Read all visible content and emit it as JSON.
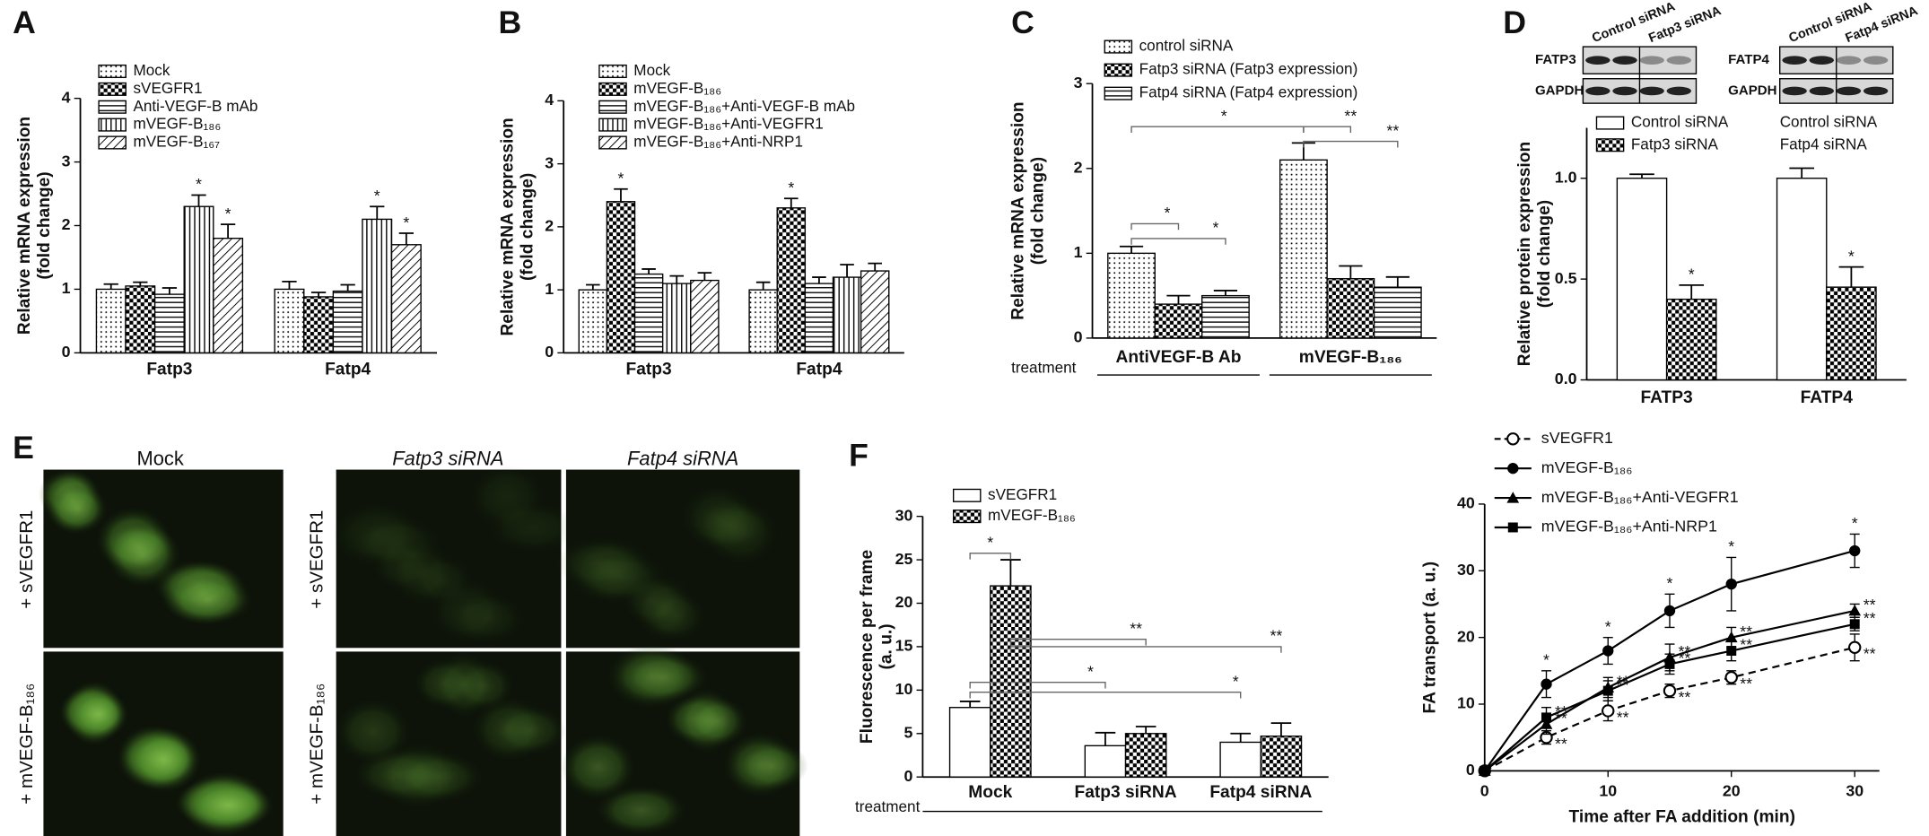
{
  "chart_data": [
    {
      "type": "bar",
      "panel_label": "A",
      "y_label": [
        "Relative mRNA expression",
        "(fold change)"
      ],
      "categories": [
        "Fatp3",
        "Fatp4"
      ],
      "ylim": [
        0,
        4
      ],
      "yticks": [
        0,
        1,
        2,
        3,
        4
      ],
      "series": [
        {
          "name": "Mock",
          "fill": "dots",
          "values": [
            1.0,
            1.0
          ],
          "errors": [
            0.08,
            0.12
          ]
        },
        {
          "name": "sVEGFR1",
          "fill": "checker",
          "values": [
            1.05,
            0.88
          ],
          "errors": [
            0.06,
            0.07
          ]
        },
        {
          "name": "Anti-VEGF-B mAb",
          "fill": "hlines",
          "values": [
            0.92,
            0.97
          ],
          "errors": [
            0.1,
            0.1
          ]
        },
        {
          "name": "mVEGF-B₁₈₆",
          "fill": "vlines",
          "values": [
            2.3,
            2.1
          ],
          "errors": [
            0.18,
            0.2
          ],
          "significance": [
            "*",
            "*"
          ]
        },
        {
          "name": "mVEGF-B₁₆₇",
          "fill": "diag",
          "values": [
            1.8,
            1.7
          ],
          "errors": [
            0.22,
            0.18
          ],
          "significance": [
            "*",
            "*"
          ]
        }
      ]
    },
    {
      "type": "bar",
      "panel_label": "B",
      "y_label": [
        "Relative mRNA expression",
        "(fold change)"
      ],
      "categories": [
        "Fatp3",
        "Fatp4"
      ],
      "ylim": [
        0,
        4
      ],
      "yticks": [
        0,
        1,
        2,
        3,
        4
      ],
      "series": [
        {
          "name": "Mock",
          "fill": "dots",
          "values": [
            1.0,
            1.0
          ],
          "errors": [
            0.08,
            0.12
          ]
        },
        {
          "name": "mVEGF-B₁₈₆",
          "fill": "checker",
          "values": [
            2.4,
            2.3
          ],
          "errors": [
            0.2,
            0.15
          ],
          "significance": [
            "*",
            "*"
          ]
        },
        {
          "name": "mVEGF-B₁₈₆+Anti-VEGF-B mAb",
          "fill": "hlines",
          "values": [
            1.25,
            1.1
          ],
          "errors": [
            0.08,
            0.1
          ]
        },
        {
          "name": "mVEGF-B₁₈₆+Anti-VEGFR1",
          "fill": "vlines",
          "values": [
            1.1,
            1.2
          ],
          "errors": [
            0.12,
            0.2
          ]
        },
        {
          "name": "mVEGF-B₁₈₆+Anti-NRP1",
          "fill": "diag",
          "values": [
            1.15,
            1.3
          ],
          "errors": [
            0.12,
            0.12
          ]
        }
      ]
    },
    {
      "type": "bar",
      "panel_label": "C",
      "y_label": [
        "Relative mRNA expression",
        "(fold change)"
      ],
      "treatment_label": "treatment",
      "categories": [
        "AntiVEGF-B Ab",
        "mVEGF-B₁₈₆"
      ],
      "ylim": [
        0,
        3
      ],
      "yticks": [
        0,
        1,
        2,
        3
      ],
      "series": [
        {
          "name": "control siRNA",
          "fill": "dots",
          "values": [
            1.0,
            2.1
          ],
          "errors": [
            0.08,
            0.2
          ]
        },
        {
          "name": "Fatp3 siRNA (Fatp3 expression)",
          "fill": "checker",
          "values": [
            0.4,
            0.7
          ],
          "errors": [
            0.1,
            0.15
          ]
        },
        {
          "name": "Fatp4 siRNA (Fatp4 expression)",
          "fill": "hlines",
          "values": [
            0.5,
            0.6
          ],
          "errors": [
            0.06,
            0.12
          ]
        }
      ],
      "brackets": [
        "*",
        "*",
        "*",
        "**",
        "**"
      ]
    },
    {
      "type": "bar",
      "panel_label": "D",
      "y_label": [
        "Relative protein expression",
        "(fold change)"
      ],
      "categories": [
        "FATP3",
        "FATP4"
      ],
      "ylim": [
        0,
        1.25
      ],
      "yticks": [
        {
          "value": 0,
          "label": "0.0"
        },
        {
          "value": 0.5,
          "label": "0.5"
        },
        {
          "value": 1,
          "label": "1.0"
        }
      ],
      "series": [
        {
          "name": "Control siRNA",
          "fill": "none",
          "values": [
            1.0,
            1.0
          ],
          "errors": [
            0.02,
            0.05
          ]
        },
        {
          "name": "Fatp3 siRNA",
          "fill": "checker",
          "values": [
            0.4,
            0.46
          ],
          "errors": [
            0.07,
            0.1
          ],
          "significance": [
            "*",
            "*"
          ]
        }
      ],
      "legend_right": [
        "Control siRNA",
        "Fatp4 siRNA"
      ],
      "blots": [
        {
          "proteins": [
            "FATP3",
            "GAPDH"
          ],
          "lanes": [
            "Control siRNA",
            "Fatp3 siRNA"
          ]
        },
        {
          "proteins": [
            "FATP4",
            "GAPDH"
          ],
          "lanes": [
            "Control siRNA",
            "Fatp4 siRNA"
          ]
        }
      ]
    },
    {
      "type": "bar",
      "panel_label": "F",
      "y_label": [
        "Fluorescence per frame",
        "(a. u.)"
      ],
      "treatment_label": "treatment",
      "categories": [
        "Mock",
        "Fatp3 siRNA",
        "Fatp4 siRNA"
      ],
      "ylim": [
        0,
        30
      ],
      "yticks": [
        0,
        5,
        10,
        15,
        20,
        25,
        30
      ],
      "series": [
        {
          "name": "sVEGFR1",
          "fill": "none",
          "values": [
            8,
            3.6,
            4.0
          ],
          "errors": [
            0.7,
            1.5,
            1.0
          ]
        },
        {
          "name": "mVEGF-B₁₈₆",
          "fill": "checker",
          "values": [
            22,
            5.0,
            4.7
          ],
          "errors": [
            3,
            0.8,
            1.5
          ]
        }
      ],
      "brackets": [
        "*",
        "**",
        "**",
        "*",
        "*"
      ]
    },
    {
      "type": "line",
      "x_label": "Time after FA addition (min)",
      "y_label": [
        "FA transport (a. u.)"
      ],
      "x": [
        0,
        5,
        10,
        15,
        20,
        30
      ],
      "xlim": [
        0,
        32
      ],
      "xticks": [
        0,
        10,
        20,
        30
      ],
      "ylim": [
        0,
        40
      ],
      "yticks": [
        0,
        10,
        20,
        30,
        40
      ],
      "series": [
        {
          "name": "sVEGFR1",
          "marker": "open-circle",
          "line_style": "dashed",
          "values": [
            0,
            5,
            9,
            12,
            14,
            18.5
          ],
          "errors": [
            0,
            1,
            1.5,
            1,
            1,
            2
          ],
          "significance": [
            null,
            "**",
            "**",
            "**",
            "**",
            "**"
          ]
        },
        {
          "name": "mVEGF-B₁₈₆",
          "marker": "circle",
          "line_style": "solid",
          "values": [
            0,
            13,
            18,
            24,
            28,
            33
          ],
          "errors": [
            0,
            2,
            2,
            2.5,
            4,
            2.5
          ],
          "significance": [
            null,
            "*",
            "*",
            "*",
            "*",
            "*"
          ]
        },
        {
          "name": "mVEGF-B₁₈₆+Anti-VEGFR1",
          "marker": "triangle",
          "line_style": "solid",
          "values": [
            0,
            7,
            12.5,
            17,
            20,
            24
          ],
          "errors": [
            0,
            1.5,
            1.5,
            2,
            1.5,
            1
          ],
          "significance": [
            null,
            "**",
            "**",
            "**",
            "**",
            "**"
          ]
        },
        {
          "name": "mVEGF-B₁₈₆+Anti-NRP1",
          "marker": "square",
          "line_style": "solid",
          "values": [
            0,
            8,
            12,
            16,
            18,
            22
          ],
          "errors": [
            0,
            1.5,
            1.5,
            1.5,
            1.5,
            1
          ],
          "significance": [
            null,
            "**",
            "**",
            "**",
            "**",
            "**"
          ]
        }
      ]
    }
  ],
  "micrographs": {
    "panel_label": "E",
    "columns": [
      "Mock",
      "Fatp3 siRNA",
      "Fatp4 siRNA"
    ],
    "rows": [
      "+ sVEGFR1",
      "+ mVEGF-B₁₈₆"
    ]
  }
}
